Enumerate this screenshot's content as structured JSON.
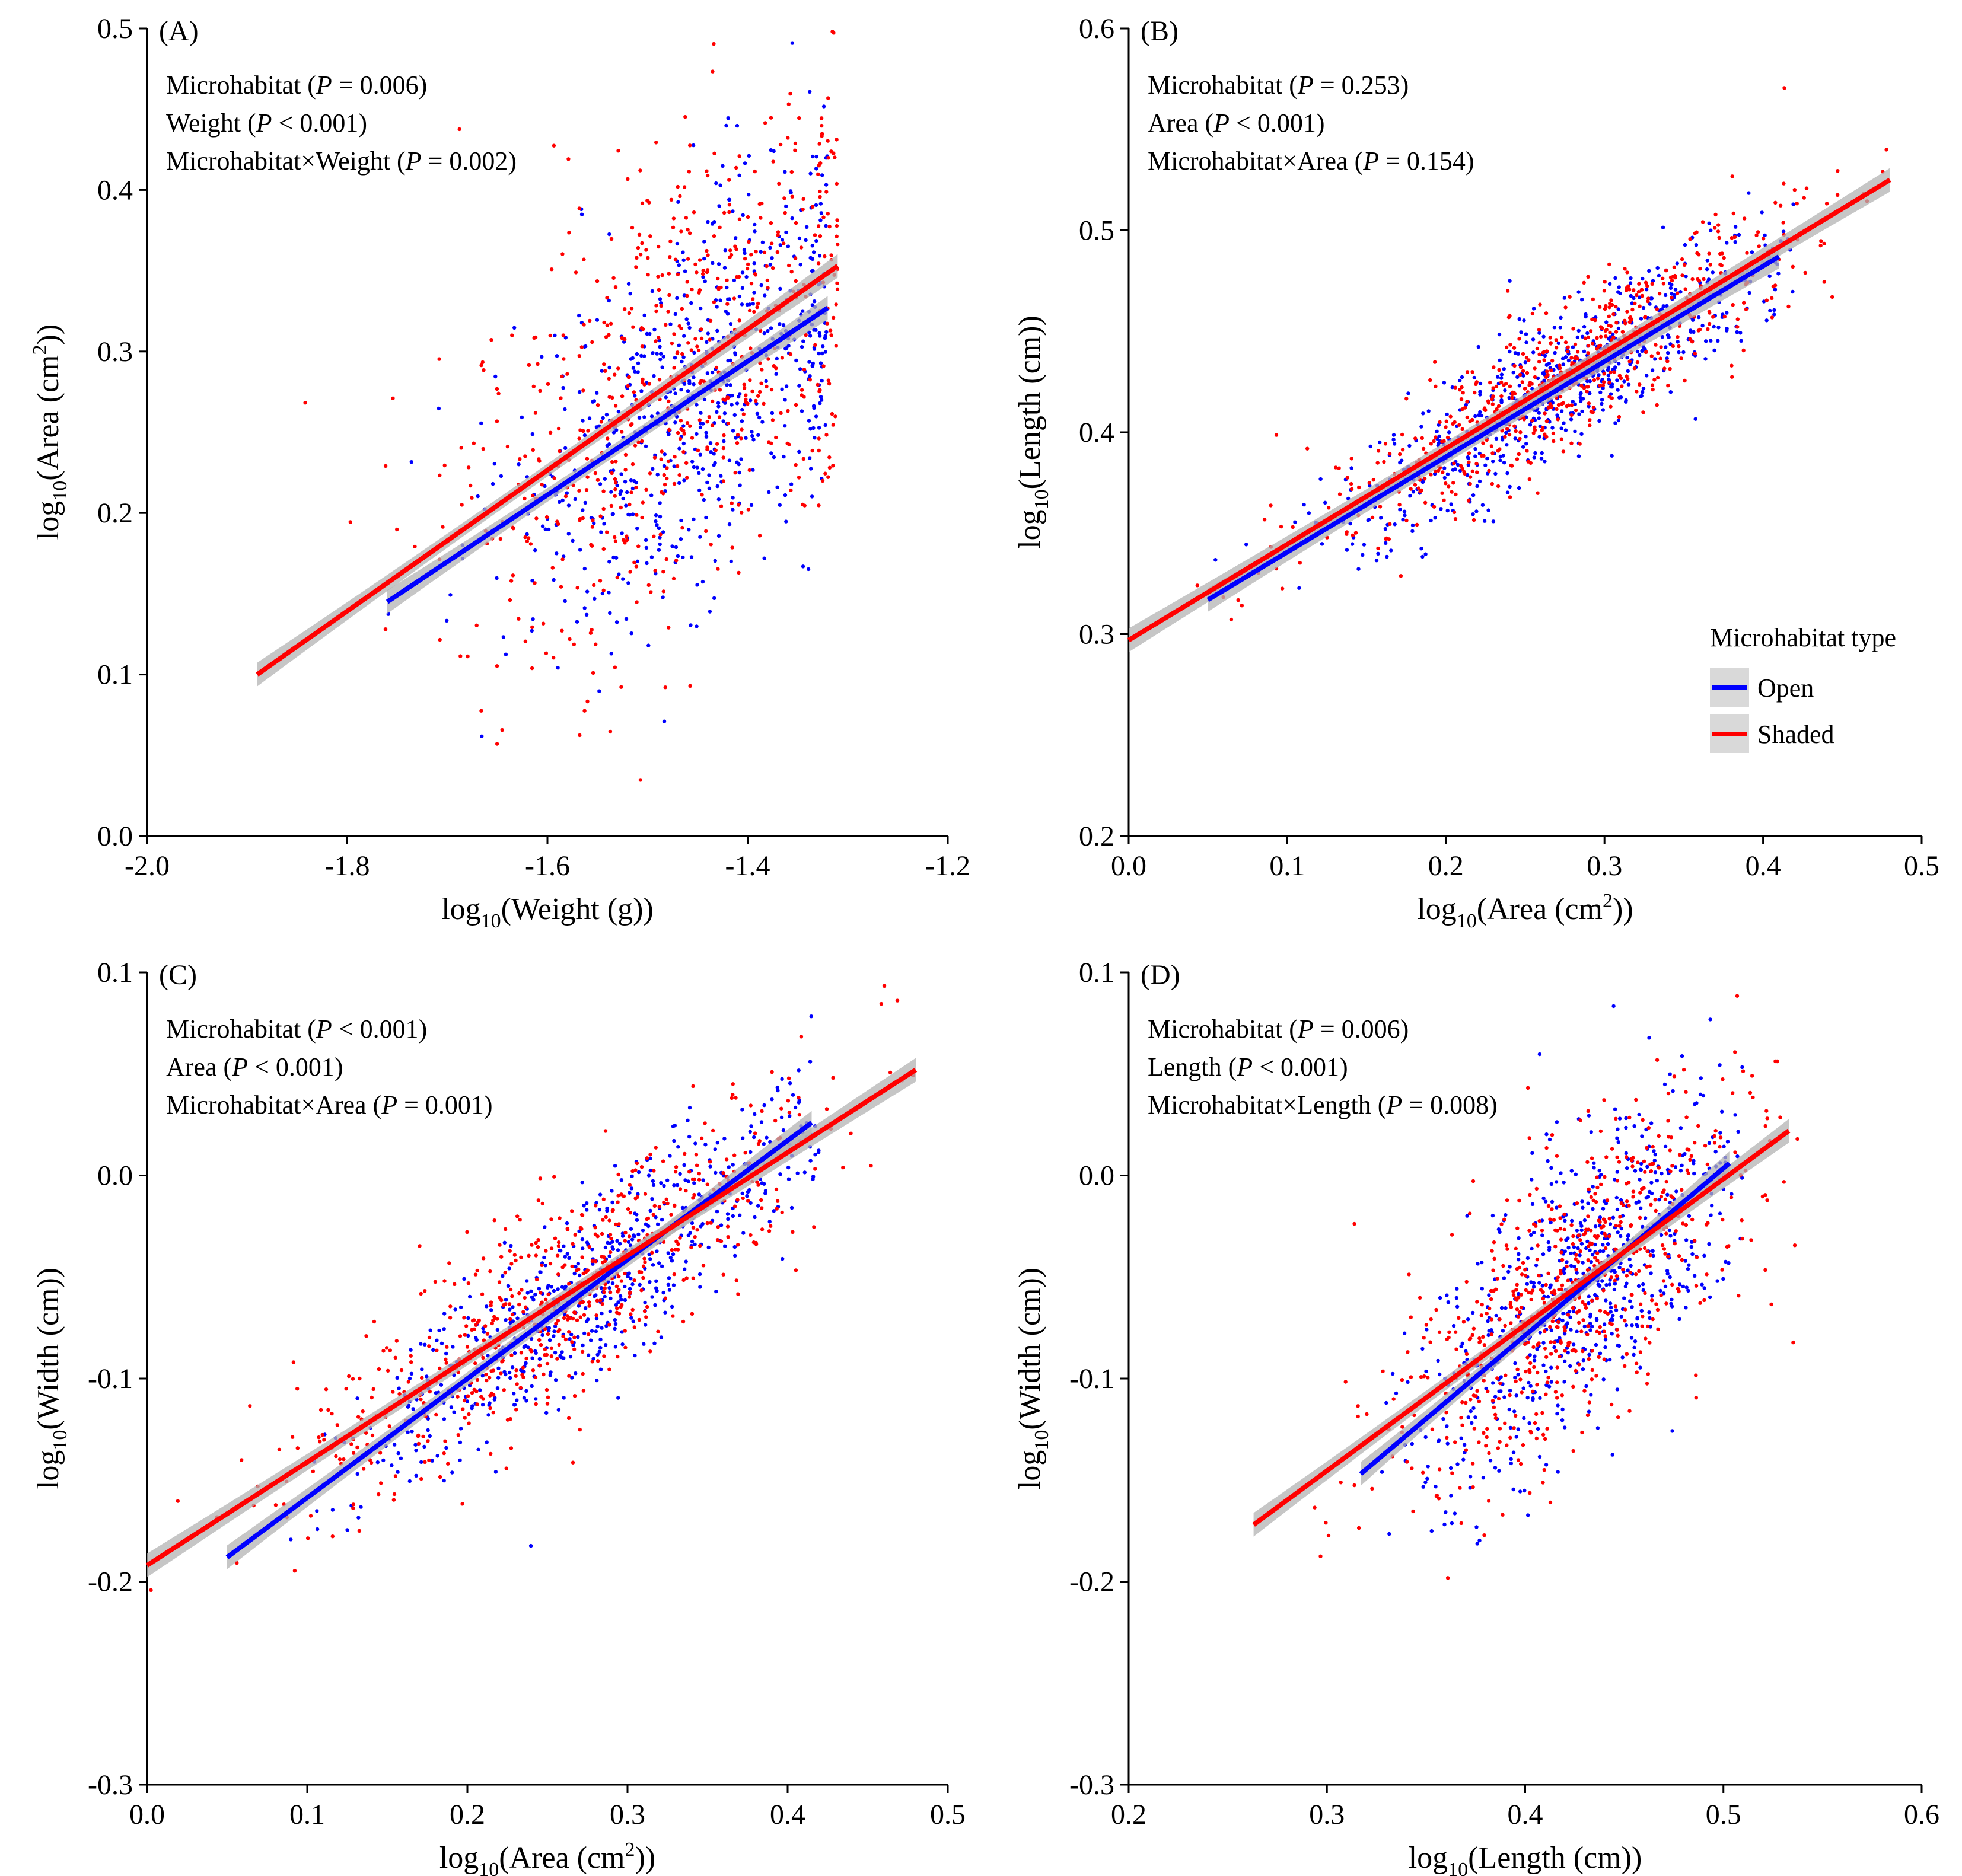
{
  "colors": {
    "open": "#0000ff",
    "shaded": "#ff0000",
    "band": "#b3b3b3",
    "axis": "#000000"
  },
  "legend": {
    "title": "Microhabitat type",
    "items": [
      {
        "label": "Open",
        "color": "#0000ff"
      },
      {
        "label": "Shaded",
        "color": "#ff0000"
      }
    ]
  },
  "chart_data": [
    {
      "type": "scatter",
      "panel_label": "(A)",
      "xlabel": {
        "prefix": "log",
        "sub": "10",
        "body": "(Weight (g))",
        "sup": "",
        "tail": ""
      },
      "ylabel": {
        "prefix": "log",
        "sub": "10",
        "body": "(Area (cm",
        "sup": "2",
        "tail": "))"
      },
      "xlim": [
        -2.0,
        -1.2
      ],
      "ylim": [
        0.0,
        0.5
      ],
      "xticks": [
        "-2.0",
        "-1.8",
        "-1.6",
        "-1.4",
        "-1.2"
      ],
      "yticks": [
        "0.0",
        "0.1",
        "0.2",
        "0.3",
        "0.4",
        "0.5"
      ],
      "stats": [
        {
          "term": "Microhabitat",
          "p": "= 0.006"
        },
        {
          "term": "Weight",
          "p": "< 0.001"
        },
        {
          "term": "Microhabitat×Weight",
          "p": "= 0.002"
        }
      ],
      "series": [
        {
          "name": "Open",
          "color": "#0000ff",
          "fit": {
            "x": [
              -1.76,
              -1.32
            ],
            "y": [
              0.145,
              0.327
            ]
          },
          "cloud": {
            "x_mean": -1.45,
            "x_sd": 0.095,
            "x_min": -1.76,
            "x_max": -1.32,
            "y_sd": 0.06,
            "n": 650
          }
        },
        {
          "name": "Shaded",
          "color": "#ff0000",
          "fit": {
            "x": [
              -1.89,
              -1.31
            ],
            "y": [
              0.1,
              0.353
            ]
          },
          "cloud": {
            "x_mean": -1.47,
            "x_sd": 0.11,
            "x_min": -1.89,
            "x_max": -1.31,
            "y_sd": 0.07,
            "n": 650
          }
        }
      ]
    },
    {
      "type": "scatter",
      "panel_label": "(B)",
      "xlabel": {
        "prefix": "log",
        "sub": "10",
        "body": "(Area (cm",
        "sup": "2",
        "tail": "))"
      },
      "ylabel": {
        "prefix": "log",
        "sub": "10",
        "body": "(Length (cm))",
        "sup": "",
        "tail": ""
      },
      "xlim": [
        0.0,
        0.5
      ],
      "ylim": [
        0.2,
        0.6
      ],
      "xticks": [
        "0.0",
        "0.1",
        "0.2",
        "0.3",
        "0.4",
        "0.5"
      ],
      "yticks": [
        "0.2",
        "0.3",
        "0.4",
        "0.5",
        "0.6"
      ],
      "stats": [
        {
          "term": "Microhabitat",
          "p": "= 0.253"
        },
        {
          "term": "Area",
          "p": "< 0.001"
        },
        {
          "term": "Microhabitat×Area",
          "p": "= 0.154"
        }
      ],
      "legend": true,
      "series": [
        {
          "name": "Open",
          "color": "#0000ff",
          "fit": {
            "x": [
              0.05,
              0.41
            ],
            "y": [
              0.317,
              0.487
            ]
          },
          "cloud": {
            "x_mean": 0.28,
            "x_sd": 0.07,
            "x_min": 0.05,
            "x_max": 0.42,
            "y_sd": 0.018,
            "n": 650
          }
        },
        {
          "name": "Shaded",
          "color": "#ff0000",
          "fit": {
            "x": [
              0.0,
              0.48
            ],
            "y": [
              0.297,
              0.525
            ]
          },
          "cloud": {
            "x_mean": 0.27,
            "x_sd": 0.075,
            "x_min": 0.0,
            "x_max": 0.48,
            "y_sd": 0.018,
            "n": 650
          }
        }
      ]
    },
    {
      "type": "scatter",
      "panel_label": "(C)",
      "xlabel": {
        "prefix": "log",
        "sub": "10",
        "body": "(Area (cm",
        "sup": "2",
        "tail": "))"
      },
      "ylabel": {
        "prefix": "log",
        "sub": "10",
        "body": "(Width (cm))",
        "sup": "",
        "tail": ""
      },
      "xlim": [
        0.0,
        0.5
      ],
      "ylim": [
        -0.3,
        0.1
      ],
      "xticks": [
        "0.0",
        "0.1",
        "0.2",
        "0.3",
        "0.4",
        "0.5"
      ],
      "yticks": [
        "-0.3",
        "-0.2",
        "-0.1",
        "0.0",
        "0.1"
      ],
      "stats": [
        {
          "term": "Microhabitat",
          "p": "< 0.001"
        },
        {
          "term": "Area",
          "p": "< 0.001"
        },
        {
          "term": "Microhabitat×Area",
          "p": "= 0.001"
        }
      ],
      "series": [
        {
          "name": "Open",
          "color": "#0000ff",
          "fit": {
            "x": [
              0.05,
              0.415
            ],
            "y": [
              -0.188,
              0.026
            ]
          },
          "cloud": {
            "x_mean": 0.28,
            "x_sd": 0.07,
            "x_min": 0.05,
            "x_max": 0.42,
            "y_sd": 0.022,
            "n": 650
          }
        },
        {
          "name": "Shaded",
          "color": "#ff0000",
          "fit": {
            "x": [
              0.0,
              0.48
            ],
            "y": [
              -0.192,
              0.052
            ]
          },
          "cloud": {
            "x_mean": 0.26,
            "x_sd": 0.08,
            "x_min": 0.0,
            "x_max": 0.48,
            "y_sd": 0.025,
            "n": 650
          }
        }
      ]
    },
    {
      "type": "scatter",
      "panel_label": "(D)",
      "xlabel": {
        "prefix": "log",
        "sub": "10",
        "body": "(Length (cm))",
        "sup": "",
        "tail": ""
      },
      "ylabel": {
        "prefix": "log",
        "sub": "10",
        "body": "(Width (cm))",
        "sup": "",
        "tail": ""
      },
      "xlim": [
        0.2,
        0.6
      ],
      "ylim": [
        -0.3,
        0.1
      ],
      "xticks": [
        "0.2",
        "0.3",
        "0.4",
        "0.5",
        "0.6"
      ],
      "yticks": [
        "-0.3",
        "-0.2",
        "-0.1",
        "0.0",
        "0.1"
      ],
      "stats": [
        {
          "term": "Microhabitat",
          "p": "= 0.006"
        },
        {
          "term": "Length",
          "p": "< 0.001"
        },
        {
          "term": "Microhabitat×Length",
          "p": "= 0.008"
        }
      ],
      "series": [
        {
          "name": "Open",
          "color": "#0000ff",
          "fit": {
            "x": [
              0.317,
              0.503
            ],
            "y": [
              -0.147,
              0.006
            ]
          },
          "cloud": {
            "x_mean": 0.43,
            "x_sd": 0.04,
            "x_min": 0.32,
            "x_max": 0.51,
            "y_sd": 0.035,
            "n": 650
          }
        },
        {
          "name": "Shaded",
          "color": "#ff0000",
          "fit": {
            "x": [
              0.263,
              0.533
            ],
            "y": [
              -0.172,
              0.022
            ]
          },
          "cloud": {
            "x_mean": 0.42,
            "x_sd": 0.045,
            "x_min": 0.26,
            "x_max": 0.54,
            "y_sd": 0.035,
            "n": 650
          }
        }
      ]
    }
  ]
}
